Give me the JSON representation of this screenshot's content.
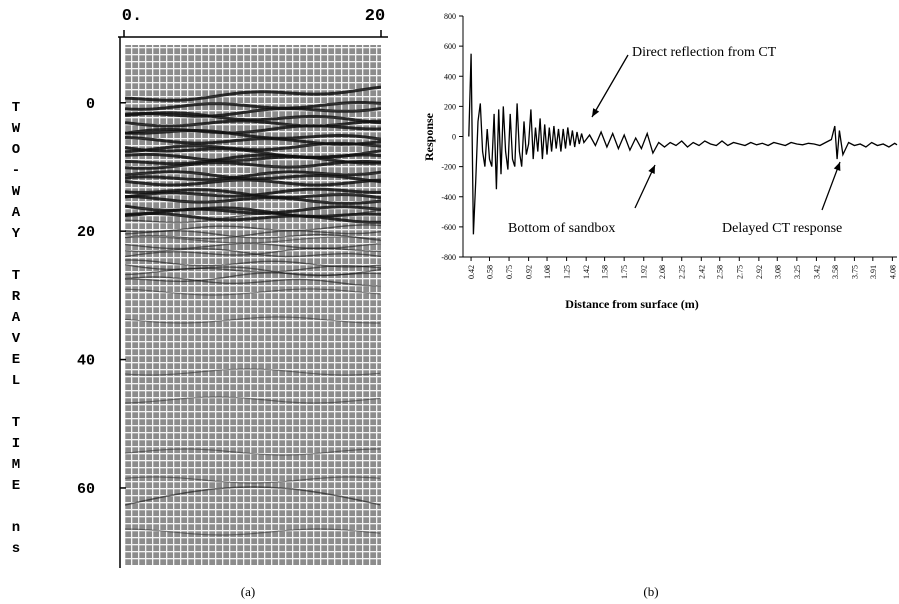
{
  "chart_data": [
    {
      "type": "radargram",
      "y_label": "TWO-WAY TRAVEL TIME ns",
      "caption": "(a)",
      "xlim": [
        0,
        20
      ],
      "xticks": [
        {
          "value": 0,
          "label": "0."
        },
        20
      ],
      "ylim": [
        -9,
        72
      ],
      "yticks": [
        0,
        20,
        40,
        60
      ]
    },
    {
      "type": "line",
      "y_label": "Response",
      "x_label": "Distance from surface (m)",
      "caption": "(b)",
      "color": "#000000",
      "annotations": [
        "Direct reflection from CT",
        "Bottom of sandbox",
        "Delayed CT response"
      ],
      "xlim": [
        0.35,
        4.12
      ],
      "xticks": [
        0.42,
        0.58,
        0.75,
        0.92,
        1.08,
        1.25,
        1.42,
        1.58,
        1.75,
        1.92,
        2.08,
        2.25,
        2.42,
        2.58,
        2.75,
        2.92,
        3.08,
        3.25,
        3.42,
        3.58,
        3.75,
        3.91,
        4.08
      ],
      "ylim": [
        -800,
        800
      ],
      "yticks": [
        -800,
        -600,
        -400,
        -200,
        0,
        200,
        400,
        600,
        800
      ],
      "x": [
        0.4,
        0.42,
        0.44,
        0.46,
        0.48,
        0.5,
        0.52,
        0.54,
        0.56,
        0.58,
        0.6,
        0.62,
        0.64,
        0.66,
        0.68,
        0.7,
        0.72,
        0.74,
        0.76,
        0.78,
        0.8,
        0.82,
        0.84,
        0.86,
        0.88,
        0.9,
        0.92,
        0.94,
        0.96,
        0.98,
        1.0,
        1.02,
        1.04,
        1.06,
        1.08,
        1.1,
        1.12,
        1.14,
        1.16,
        1.18,
        1.2,
        1.22,
        1.24,
        1.26,
        1.28,
        1.3,
        1.32,
        1.34,
        1.36,
        1.38,
        1.4,
        1.45,
        1.5,
        1.55,
        1.6,
        1.65,
        1.7,
        1.75,
        1.8,
        1.85,
        1.9,
        1.95,
        2.0,
        2.05,
        2.1,
        2.15,
        2.2,
        2.25,
        2.3,
        2.35,
        2.4,
        2.45,
        2.5,
        2.55,
        2.6,
        2.65,
        2.7,
        2.75,
        2.8,
        2.85,
        2.9,
        2.95,
        3.0,
        3.05,
        3.1,
        3.15,
        3.2,
        3.25,
        3.3,
        3.35,
        3.4,
        3.45,
        3.5,
        3.55,
        3.58,
        3.6,
        3.62,
        3.65,
        3.7,
        3.75,
        3.8,
        3.85,
        3.9,
        3.95,
        4.0,
        4.05,
        4.1,
        4.12
      ],
      "values": [
        0,
        550,
        -650,
        -300,
        100,
        220,
        -100,
        -200,
        50,
        -150,
        -200,
        150,
        -350,
        180,
        -250,
        200,
        -100,
        -220,
        150,
        -150,
        -200,
        220,
        -100,
        -200,
        100,
        -120,
        -50,
        180,
        -150,
        60,
        -100,
        120,
        -150,
        80,
        -120,
        60,
        -100,
        70,
        -80,
        50,
        -100,
        50,
        -80,
        60,
        -60,
        40,
        -70,
        30,
        -50,
        20,
        -40,
        10,
        -60,
        30,
        -70,
        20,
        -80,
        10,
        -90,
        -10,
        -80,
        20,
        -110,
        -40,
        -70,
        -40,
        -60,
        -30,
        -70,
        -40,
        -60,
        -30,
        -50,
        -60,
        -30,
        -60,
        -40,
        -50,
        -60,
        -40,
        -55,
        -45,
        -60,
        -40,
        -50,
        -60,
        -40,
        -50,
        -55,
        -45,
        -50,
        -60,
        -40,
        -20,
        70,
        -150,
        40,
        -120,
        -40,
        -60,
        -50,
        -70,
        -40,
        -60,
        -50,
        -70,
        -45,
        -55
      ]
    }
  ]
}
